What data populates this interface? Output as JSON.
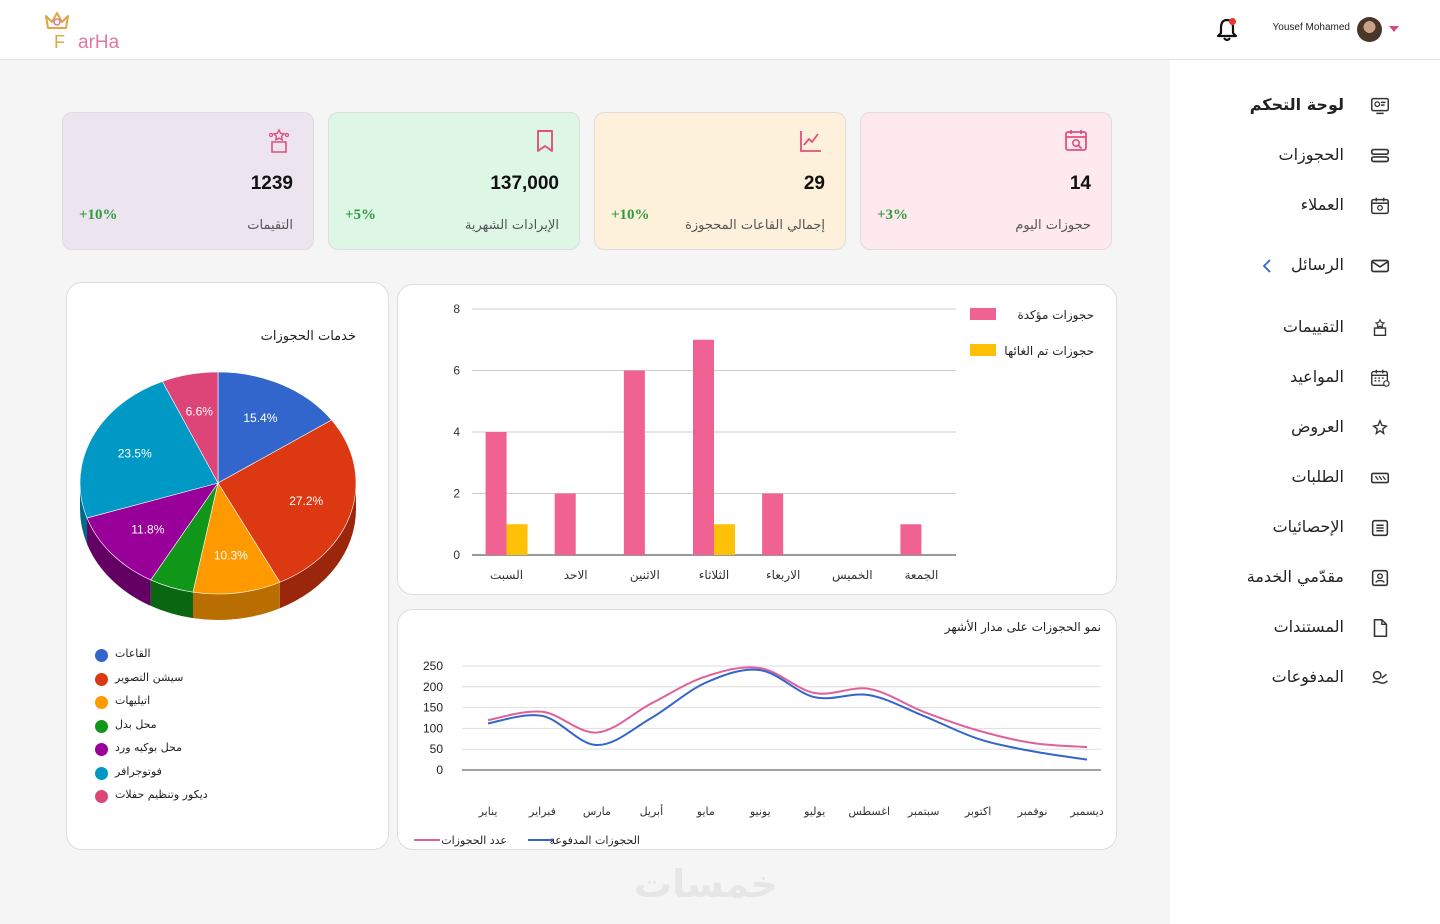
{
  "app": {
    "logo_f": "F",
    "logo_rest": "arHa"
  },
  "header": {
    "user_name": "Yousef Mohamed"
  },
  "sidebar": {
    "items": [
      {
        "label": "لوحة التحكم",
        "icon": "dashboard-icon",
        "active": true
      },
      {
        "label": "الحجوزات",
        "icon": "bookings-icon"
      },
      {
        "label": "العملاء",
        "icon": "clients-icon"
      },
      {
        "label": "الرسائل",
        "icon": "mail-icon",
        "has_chevron": true
      },
      {
        "label": "التقييمات",
        "icon": "ratings-icon"
      },
      {
        "label": "المواعيد",
        "icon": "calendar-icon"
      },
      {
        "label": "العروض",
        "icon": "offers-icon"
      },
      {
        "label": "الطلبات",
        "icon": "tickets-icon"
      },
      {
        "label": "الإحصائيات",
        "icon": "stats-icon"
      },
      {
        "label": "مقدّمي الخدمة",
        "icon": "providers-icon"
      },
      {
        "label": "المستندات",
        "icon": "documents-icon"
      },
      {
        "label": "المدفوعات",
        "icon": "payments-icon"
      }
    ]
  },
  "cards": [
    {
      "value": "14",
      "label": "حجوزات اليوم",
      "change": "+3%",
      "icon": "calendar-search-icon",
      "bg": "#fde9ee",
      "accent": "#e0507e"
    },
    {
      "value": "29",
      "label": "إجمالي القاعات المحجوزة",
      "change": "+10%",
      "icon": "trend-chart-icon",
      "bg": "#fdf1dc",
      "accent": "#e0507e"
    },
    {
      "value": "137,000",
      "label": "الإيرادات الشهرية",
      "change": "+5%",
      "icon": "bookmark-icon",
      "bg": "#ddf6e6",
      "accent": "#e0507e"
    },
    {
      "value": "1239",
      "label": "التقيمات",
      "change": "+10%",
      "icon": "stars-icon",
      "bg": "#ece4ef",
      "accent": "#e0507e"
    }
  ],
  "chart_data": [
    {
      "type": "pie",
      "title": "خدمات الحجوزات",
      "slices": [
        {
          "label": "القاعات",
          "value": 15.4,
          "color": "#3366cc",
          "side": "#1f3f80"
        },
        {
          "label": "سيشن التصوير",
          "value": 27.2,
          "color": "#dc3912",
          "side": "#9a270c"
        },
        {
          "label": "اتيليهات",
          "value": 10.3,
          "color": "#ff9900",
          "side": "#b86e00"
        },
        {
          "label": "محل بدل",
          "value": 5.2,
          "color": "#109618",
          "side": "#0a6610"
        },
        {
          "label": "محل بوكيه ورد",
          "value": 11.8,
          "color": "#990099",
          "side": "#640064"
        },
        {
          "label": "فوتوجرافر",
          "value": 23.5,
          "color": "#0099c6",
          "side": "#006a88"
        },
        {
          "label": "ديكور وتنظيم حفلات",
          "value": 6.6,
          "color": "#dd4477",
          "side": "#9b2f53"
        }
      ],
      "slice_labels_shown": [
        "15.4%",
        "27.2%",
        "10.3%",
        "",
        "11.8%",
        "23.5%",
        "6.6%"
      ]
    },
    {
      "type": "bar",
      "categories": [
        "السبت",
        "الاحد",
        "الاثنين",
        "الثلاثاء",
        "الاربعاء",
        "الخميس",
        "الجمعة"
      ],
      "series": [
        {
          "name": "حجوزات مؤكدة",
          "values": [
            4,
            2,
            6,
            7,
            2,
            0,
            1
          ],
          "color": "#f06292"
        },
        {
          "name": "حجوزات تم الغائها",
          "values": [
            1,
            0,
            0,
            1,
            0,
            0,
            0
          ],
          "color": "#ffc107"
        }
      ],
      "ylim": [
        0,
        8
      ],
      "yticks": [
        "0",
        "2",
        "4",
        "6",
        "8"
      ],
      "legend": "top-right",
      "grid": true
    },
    {
      "type": "line",
      "title": "نمو الحجوزات على مدار الأشهر",
      "categories": [
        "يناير",
        "فبراير",
        "مارس",
        "أبريل",
        "مايو",
        "يونيو",
        "يوليو",
        "اغسطس",
        "سبتمبر",
        "اكتوبر",
        "نوفمبر",
        "ديسمبر"
      ],
      "series": [
        {
          "name": "عدد الحجوزات",
          "values": [
            120,
            140,
            90,
            160,
            225,
            245,
            185,
            195,
            140,
            95,
            65,
            55
          ],
          "color": "#e0609a"
        },
        {
          "name": "الحجوزات المدفوعة",
          "values": [
            112,
            130,
            60,
            125,
            210,
            240,
            175,
            180,
            130,
            75,
            45,
            25
          ],
          "color": "#3366cc"
        }
      ],
      "ylim": [
        0,
        250
      ],
      "yticks": [
        "0",
        "50",
        "100",
        "150",
        "200",
        "250"
      ],
      "legend": "bottom",
      "grid": true
    }
  ],
  "footer": {
    "watermark": "خمسات"
  }
}
